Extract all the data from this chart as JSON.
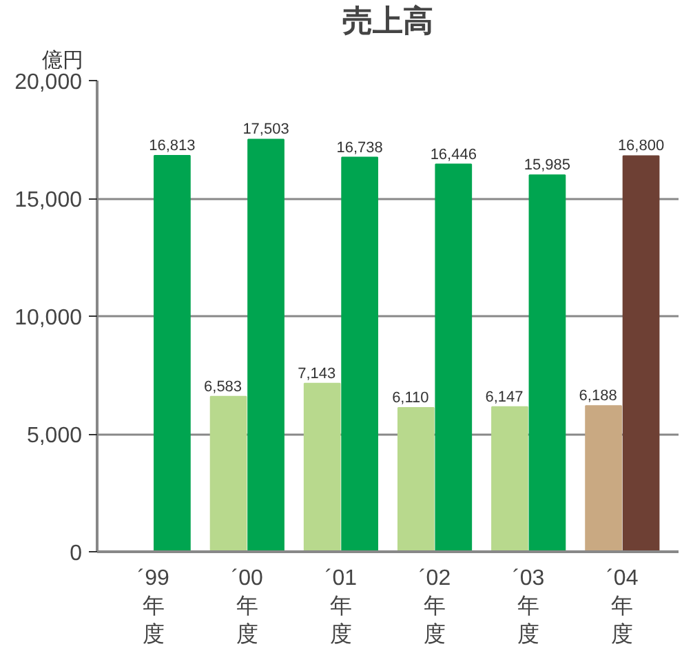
{
  "chart_data": {
    "type": "bar",
    "title": "売上高",
    "ylabel": "億円",
    "categories": [
      "´99年度",
      "´00年度",
      "´01年度",
      "´02年度",
      "´03年度",
      "´04年度"
    ],
    "series": [
      {
        "colors": [
          "#b8d98d",
          "#b8d98d",
          "#b8d98d",
          "#b8d98d",
          "#b8d98d",
          "#c9a982"
        ],
        "values": [
          null,
          6583,
          7143,
          6110,
          6147,
          6188
        ],
        "value_labels": [
          null,
          "6,583",
          "7,143",
          "6,110",
          "6,147",
          "6,188"
        ]
      },
      {
        "colors": [
          "#00a550",
          "#00a550",
          "#00a550",
          "#00a550",
          "#00a550",
          "#6e4034"
        ],
        "values": [
          16813,
          17503,
          16738,
          16446,
          15985,
          16800
        ],
        "value_labels": [
          "16,813",
          "17,503",
          "16,738",
          "16,446",
          "15,985",
          "16,800"
        ]
      }
    ],
    "ylim": [
      0,
      20000
    ],
    "yticks": [
      {
        "value": 0,
        "label": "0"
      },
      {
        "value": 5000,
        "label": "5,000"
      },
      {
        "value": 10000,
        "label": "10,000"
      },
      {
        "value": 15000,
        "label": "15,000"
      },
      {
        "value": 20000,
        "label": "20,000"
      }
    ],
    "grid": "y"
  }
}
